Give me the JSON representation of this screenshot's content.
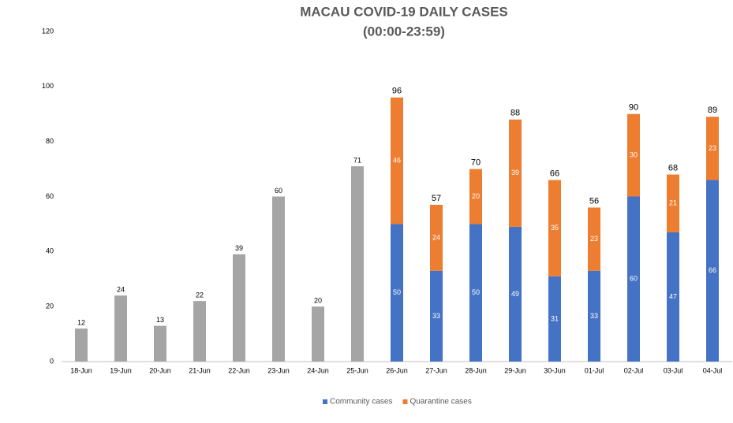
{
  "chart_data": {
    "type": "stacked-bar",
    "title": "MACAU COVID-19 DAILY CASES",
    "subtitle": "(00:00-23:59)",
    "categories": [
      "18-Jun",
      "19-Jun",
      "20-Jun",
      "21-Jun",
      "22-Jun",
      "23-Jun",
      "24-Jun",
      "25-Jun",
      "26-Jun",
      "27-Jun",
      "28-Jun",
      "29-Jun",
      "30-Jun",
      "01-Jul",
      "02-Jul",
      "03-Jul",
      "04-Jul"
    ],
    "series": [
      {
        "color": "#a5a5a5",
        "values": [
          12,
          24,
          13,
          22,
          39,
          60,
          20,
          71,
          null,
          null,
          null,
          null,
          null,
          null,
          null,
          null,
          null
        ]
      },
      {
        "name": "Community cases",
        "color": "#4472c4",
        "values": [
          null,
          null,
          null,
          null,
          null,
          null,
          null,
          null,
          50,
          33,
          50,
          49,
          31,
          33,
          60,
          47,
          66
        ]
      },
      {
        "name": "Quarantine cases",
        "color": "#ed7d31",
        "values": [
          null,
          null,
          null,
          null,
          null,
          null,
          null,
          null,
          46,
          24,
          20,
          39,
          35,
          23,
          30,
          21,
          23
        ]
      }
    ],
    "totals": [
      null,
      null,
      null,
      null,
      null,
      null,
      null,
      null,
      96,
      57,
      70,
      88,
      66,
      56,
      90,
      68,
      89
    ],
    "ylim": [
      0,
      120
    ],
    "yticks": [
      0,
      20,
      40,
      60,
      80,
      100,
      120
    ],
    "grid": false,
    "legend": "bottom"
  }
}
